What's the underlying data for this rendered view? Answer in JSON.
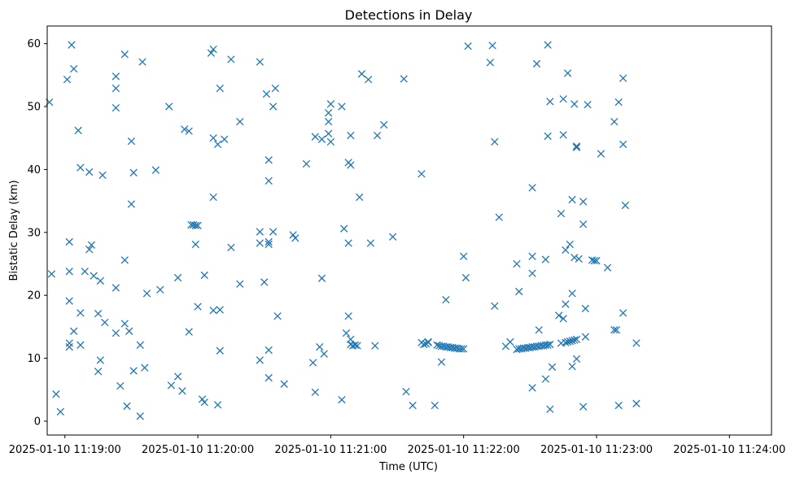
{
  "chart_data": {
    "type": "scatter",
    "title": "Detections in Delay",
    "xlabel": "Time (UTC)",
    "ylabel": "Bistatic Delay (km)",
    "x_axis": "datetime",
    "xlim": [
      "2025-01-10 11:18:52",
      "2025-01-10 11:24:19"
    ],
    "ylim": [
      -2.2,
      62.8
    ],
    "xticks": [
      "2025-01-10 11:19:00",
      "2025-01-10 11:20:00",
      "2025-01-10 11:21:00",
      "2025-01-10 11:22:00",
      "2025-01-10 11:23:00",
      "2025-01-10 11:24:00"
    ],
    "yticks": [
      0,
      10,
      20,
      30,
      40,
      50,
      60
    ],
    "marker": "x",
    "color": "#1f77b4",
    "grid": false,
    "legend": "none",
    "series": [
      {
        "points": [
          [
            "2025-01-10 11:18:53",
            50.7
          ],
          [
            "2025-01-10 11:18:54",
            23.4
          ],
          [
            "2025-01-10 11:18:56",
            4.3
          ],
          [
            "2025-01-10 11:18:58",
            1.5
          ],
          [
            "2025-01-10 11:19:01",
            54.3
          ],
          [
            "2025-01-10 11:19:02",
            28.5
          ],
          [
            "2025-01-10 11:19:02",
            11.8
          ],
          [
            "2025-01-10 11:19:02",
            12.4
          ],
          [
            "2025-01-10 11:19:02",
            19.1
          ],
          [
            "2025-01-10 11:19:02",
            23.8
          ],
          [
            "2025-01-10 11:19:03",
            59.8
          ],
          [
            "2025-01-10 11:19:04",
            14.3
          ],
          [
            "2025-01-10 11:19:04",
            56.0
          ],
          [
            "2025-01-10 11:19:06",
            46.2
          ],
          [
            "2025-01-10 11:19:07",
            17.2
          ],
          [
            "2025-01-10 11:19:07",
            12.1
          ],
          [
            "2025-01-10 11:19:07",
            40.3
          ],
          [
            "2025-01-10 11:19:09",
            23.8
          ],
          [
            "2025-01-10 11:19:11",
            27.3
          ],
          [
            "2025-01-10 11:19:11",
            39.6
          ],
          [
            "2025-01-10 11:19:12",
            28.0
          ],
          [
            "2025-01-10 11:19:13",
            23.1
          ],
          [
            "2025-01-10 11:19:15",
            17.1
          ],
          [
            "2025-01-10 11:19:15",
            7.9
          ],
          [
            "2025-01-10 11:19:16",
            9.7
          ],
          [
            "2025-01-10 11:19:16",
            22.3
          ],
          [
            "2025-01-10 11:19:17",
            39.1
          ],
          [
            "2025-01-10 11:19:18",
            15.7
          ],
          [
            "2025-01-10 11:19:23",
            54.8
          ],
          [
            "2025-01-10 11:19:23",
            52.9
          ],
          [
            "2025-01-10 11:19:23",
            49.8
          ],
          [
            "2025-01-10 11:19:23",
            21.2
          ],
          [
            "2025-01-10 11:19:23",
            14.0
          ],
          [
            "2025-01-10 11:19:25",
            5.6
          ],
          [
            "2025-01-10 11:19:27",
            58.3
          ],
          [
            "2025-01-10 11:19:27",
            25.6
          ],
          [
            "2025-01-10 11:19:27",
            15.5
          ],
          [
            "2025-01-10 11:19:28",
            2.4
          ],
          [
            "2025-01-10 11:19:29",
            14.3
          ],
          [
            "2025-01-10 11:19:30",
            44.5
          ],
          [
            "2025-01-10 11:19:30",
            34.5
          ],
          [
            "2025-01-10 11:19:31",
            39.5
          ],
          [
            "2025-01-10 11:19:31",
            8.0
          ],
          [
            "2025-01-10 11:19:34",
            12.1
          ],
          [
            "2025-01-10 11:19:34",
            0.8
          ],
          [
            "2025-01-10 11:19:35",
            57.1
          ],
          [
            "2025-01-10 11:19:36",
            8.5
          ],
          [
            "2025-01-10 11:19:37",
            20.3
          ],
          [
            "2025-01-10 11:19:41",
            39.9
          ],
          [
            "2025-01-10 11:19:43",
            20.9
          ],
          [
            "2025-01-10 11:19:47",
            50.0
          ],
          [
            "2025-01-10 11:19:48",
            5.7
          ],
          [
            "2025-01-10 11:19:51",
            7.1
          ],
          [
            "2025-01-10 11:19:51",
            22.8
          ],
          [
            "2025-01-10 11:19:53",
            4.8
          ],
          [
            "2025-01-10 11:19:54",
            46.4
          ],
          [
            "2025-01-10 11:19:56",
            46.1
          ],
          [
            "2025-01-10 11:19:56",
            14.2
          ],
          [
            "2025-01-10 11:19:57",
            31.2
          ],
          [
            "2025-01-10 11:19:58",
            31.2
          ],
          [
            "2025-01-10 11:19:59",
            31.1
          ],
          [
            "2025-01-10 11:20:00",
            31.1
          ],
          [
            "2025-01-10 11:19:59",
            28.1
          ],
          [
            "2025-01-10 11:20:00",
            18.2
          ],
          [
            "2025-01-10 11:20:02",
            3.5
          ],
          [
            "2025-01-10 11:20:03",
            23.2
          ],
          [
            "2025-01-10 11:20:03",
            3.0
          ],
          [
            "2025-01-10 11:20:06",
            58.5
          ],
          [
            "2025-01-10 11:20:07",
            59.1
          ],
          [
            "2025-01-10 11:20:07",
            45.0
          ],
          [
            "2025-01-10 11:20:07",
            35.6
          ],
          [
            "2025-01-10 11:20:07",
            17.6
          ],
          [
            "2025-01-10 11:20:09",
            44.0
          ],
          [
            "2025-01-10 11:20:09",
            2.6
          ],
          [
            "2025-01-10 11:20:10",
            52.9
          ],
          [
            "2025-01-10 11:20:10",
            17.7
          ],
          [
            "2025-01-10 11:20:10",
            11.2
          ],
          [
            "2025-01-10 11:20:12",
            44.8
          ],
          [
            "2025-01-10 11:20:15",
            57.5
          ],
          [
            "2025-01-10 11:20:15",
            27.6
          ],
          [
            "2025-01-10 11:20:19",
            47.6
          ],
          [
            "2025-01-10 11:20:19",
            21.8
          ],
          [
            "2025-01-10 11:20:28",
            57.1
          ],
          [
            "2025-01-10 11:20:28",
            30.1
          ],
          [
            "2025-01-10 11:20:28",
            28.3
          ],
          [
            "2025-01-10 11:20:28",
            9.7
          ],
          [
            "2025-01-10 11:20:30",
            22.1
          ],
          [
            "2025-01-10 11:20:31",
            52.0
          ],
          [
            "2025-01-10 11:20:32",
            38.2
          ],
          [
            "2025-01-10 11:20:32",
            28.5
          ],
          [
            "2025-01-10 11:20:32",
            28.1
          ],
          [
            "2025-01-10 11:20:32",
            41.5
          ],
          [
            "2025-01-10 11:20:32",
            11.3
          ],
          [
            "2025-01-10 11:20:32",
            6.9
          ],
          [
            "2025-01-10 11:20:34",
            30.1
          ],
          [
            "2025-01-10 11:20:34",
            50.0
          ],
          [
            "2025-01-10 11:20:35",
            52.9
          ],
          [
            "2025-01-10 11:20:36",
            16.7
          ],
          [
            "2025-01-10 11:20:39",
            5.9
          ],
          [
            "2025-01-10 11:20:43",
            29.6
          ],
          [
            "2025-01-10 11:20:44",
            29.1
          ],
          [
            "2025-01-10 11:20:49",
            40.9
          ],
          [
            "2025-01-10 11:20:52",
            9.3
          ],
          [
            "2025-01-10 11:20:53",
            45.2
          ],
          [
            "2025-01-10 11:20:53",
            4.6
          ],
          [
            "2025-01-10 11:20:55",
            11.8
          ],
          [
            "2025-01-10 11:20:56",
            44.8
          ],
          [
            "2025-01-10 11:20:56",
            22.7
          ],
          [
            "2025-01-10 11:20:57",
            10.7
          ],
          [
            "2025-01-10 11:20:59",
            49.0
          ],
          [
            "2025-01-10 11:20:59",
            47.6
          ],
          [
            "2025-01-10 11:20:59",
            45.7
          ],
          [
            "2025-01-10 11:21:00",
            44.4
          ],
          [
            "2025-01-10 11:21:00",
            50.4
          ],
          [
            "2025-01-10 11:21:05",
            50.0
          ],
          [
            "2025-01-10 11:21:05",
            3.4
          ],
          [
            "2025-01-10 11:21:06",
            30.6
          ],
          [
            "2025-01-10 11:21:07",
            14.0
          ],
          [
            "2025-01-10 11:21:08",
            41.1
          ],
          [
            "2025-01-10 11:21:08",
            28.3
          ],
          [
            "2025-01-10 11:21:08",
            16.7
          ],
          [
            "2025-01-10 11:21:09",
            45.4
          ],
          [
            "2025-01-10 11:21:09",
            40.7
          ],
          [
            "2025-01-10 11:21:09",
            13.0
          ],
          [
            "2025-01-10 11:21:09",
            12.2
          ],
          [
            "2025-01-10 11:21:10",
            12.0
          ],
          [
            "2025-01-10 11:21:11",
            12.1
          ],
          [
            "2025-01-10 11:21:12",
            12.0
          ],
          [
            "2025-01-10 11:21:13",
            35.6
          ],
          [
            "2025-01-10 11:21:14",
            55.2
          ],
          [
            "2025-01-10 11:21:17",
            54.3
          ],
          [
            "2025-01-10 11:21:18",
            28.3
          ],
          [
            "2025-01-10 11:21:20",
            12.0
          ],
          [
            "2025-01-10 11:21:21",
            45.4
          ],
          [
            "2025-01-10 11:21:24",
            47.1
          ],
          [
            "2025-01-10 11:21:28",
            29.3
          ],
          [
            "2025-01-10 11:21:33",
            54.4
          ],
          [
            "2025-01-10 11:21:34",
            4.7
          ],
          [
            "2025-01-10 11:21:37",
            2.5
          ],
          [
            "2025-01-10 11:21:41",
            39.3
          ],
          [
            "2025-01-10 11:21:41",
            12.5
          ],
          [
            "2025-01-10 11:21:42",
            12.2
          ],
          [
            "2025-01-10 11:21:43",
            12.3
          ],
          [
            "2025-01-10 11:21:44",
            12.5
          ],
          [
            "2025-01-10 11:21:44",
            12.6
          ],
          [
            "2025-01-10 11:21:47",
            2.5
          ],
          [
            "2025-01-10 11:21:48",
            12.1
          ],
          [
            "2025-01-10 11:21:49",
            12.0
          ],
          [
            "2025-01-10 11:21:50",
            11.9
          ],
          [
            "2025-01-10 11:21:51",
            11.9
          ],
          [
            "2025-01-10 11:21:52",
            11.8
          ],
          [
            "2025-01-10 11:21:53",
            11.8
          ],
          [
            "2025-01-10 11:21:54",
            11.7
          ],
          [
            "2025-01-10 11:21:55",
            11.7
          ],
          [
            "2025-01-10 11:21:56",
            11.6
          ],
          [
            "2025-01-10 11:21:57",
            11.6
          ],
          [
            "2025-01-10 11:21:58",
            11.5
          ],
          [
            "2025-01-10 11:21:59",
            11.5
          ],
          [
            "2025-01-10 11:22:00",
            11.5
          ],
          [
            "2025-01-10 11:21:50",
            9.4
          ],
          [
            "2025-01-10 11:21:52",
            19.3
          ],
          [
            "2025-01-10 11:22:00",
            26.2
          ],
          [
            "2025-01-10 11:22:01",
            22.8
          ],
          [
            "2025-01-10 11:22:02",
            59.6
          ],
          [
            "2025-01-10 11:22:12",
            57.0
          ],
          [
            "2025-01-10 11:22:13",
            59.7
          ],
          [
            "2025-01-10 11:22:14",
            44.4
          ],
          [
            "2025-01-10 11:22:14",
            18.3
          ],
          [
            "2025-01-10 11:22:16",
            32.4
          ],
          [
            "2025-01-10 11:22:19",
            11.9
          ],
          [
            "2025-01-10 11:22:21",
            12.6
          ],
          [
            "2025-01-10 11:22:24",
            25.0
          ],
          [
            "2025-01-10 11:22:25",
            20.6
          ],
          [
            "2025-01-10 11:22:24",
            11.4
          ],
          [
            "2025-01-10 11:22:25",
            11.5
          ],
          [
            "2025-01-10 11:22:26",
            11.5
          ],
          [
            "2025-01-10 11:22:27",
            11.6
          ],
          [
            "2025-01-10 11:22:28",
            11.6
          ],
          [
            "2025-01-10 11:22:29",
            11.7
          ],
          [
            "2025-01-10 11:22:30",
            11.7
          ],
          [
            "2025-01-10 11:22:31",
            11.8
          ],
          [
            "2025-01-10 11:22:32",
            11.8
          ],
          [
            "2025-01-10 11:22:33",
            11.9
          ],
          [
            "2025-01-10 11:22:34",
            11.9
          ],
          [
            "2025-01-10 11:22:35",
            12.0
          ],
          [
            "2025-01-10 11:22:36",
            12.0
          ],
          [
            "2025-01-10 11:22:37",
            12.1
          ],
          [
            "2025-01-10 11:22:38",
            12.1
          ],
          [
            "2025-01-10 11:22:39",
            12.2
          ],
          [
            "2025-01-10 11:22:31",
            5.3
          ],
          [
            "2025-01-10 11:22:31",
            23.5
          ],
          [
            "2025-01-10 11:22:31",
            26.2
          ],
          [
            "2025-01-10 11:22:31",
            37.1
          ],
          [
            "2025-01-10 11:22:33",
            56.8
          ],
          [
            "2025-01-10 11:22:34",
            14.5
          ],
          [
            "2025-01-10 11:22:37",
            6.7
          ],
          [
            "2025-01-10 11:22:37",
            25.7
          ],
          [
            "2025-01-10 11:22:38",
            59.8
          ],
          [
            "2025-01-10 11:22:38",
            45.3
          ],
          [
            "2025-01-10 11:22:39",
            50.8
          ],
          [
            "2025-01-10 11:22:39",
            1.9
          ],
          [
            "2025-01-10 11:22:40",
            8.6
          ],
          [
            "2025-01-10 11:22:43",
            16.8
          ],
          [
            "2025-01-10 11:22:44",
            33.0
          ],
          [
            "2025-01-10 11:22:44",
            12.4
          ],
          [
            "2025-01-10 11:22:45",
            51.2
          ],
          [
            "2025-01-10 11:22:45",
            45.5
          ],
          [
            "2025-01-10 11:22:45",
            16.3
          ],
          [
            "2025-01-10 11:22:46",
            27.2
          ],
          [
            "2025-01-10 11:22:46",
            18.6
          ],
          [
            "2025-01-10 11:22:46",
            12.5
          ],
          [
            "2025-01-10 11:22:47",
            12.6
          ],
          [
            "2025-01-10 11:22:48",
            12.7
          ],
          [
            "2025-01-10 11:22:49",
            12.8
          ],
          [
            "2025-01-10 11:22:50",
            12.9
          ],
          [
            "2025-01-10 11:22:51",
            13.0
          ],
          [
            "2025-01-10 11:22:47",
            55.3
          ],
          [
            "2025-01-10 11:22:48",
            28.1
          ],
          [
            "2025-01-10 11:22:49",
            35.2
          ],
          [
            "2025-01-10 11:22:49",
            20.3
          ],
          [
            "2025-01-10 11:22:49",
            8.7
          ],
          [
            "2025-01-10 11:22:50",
            26.0
          ],
          [
            "2025-01-10 11:22:50",
            50.4
          ],
          [
            "2025-01-10 11:22:51",
            43.7
          ],
          [
            "2025-01-10 11:22:51",
            43.5
          ],
          [
            "2025-01-10 11:22:51",
            9.9
          ],
          [
            "2025-01-10 11:22:52",
            25.8
          ],
          [
            "2025-01-10 11:22:54",
            34.9
          ],
          [
            "2025-01-10 11:22:54",
            31.3
          ],
          [
            "2025-01-10 11:22:54",
            2.3
          ],
          [
            "2025-01-10 11:22:55",
            13.4
          ],
          [
            "2025-01-10 11:22:55",
            17.9
          ],
          [
            "2025-01-10 11:22:56",
            50.3
          ],
          [
            "2025-01-10 11:22:58",
            25.6
          ],
          [
            "2025-01-10 11:22:59",
            25.5
          ],
          [
            "2025-01-10 11:23:00",
            25.5
          ],
          [
            "2025-01-10 11:23:02",
            42.5
          ],
          [
            "2025-01-10 11:23:05",
            24.4
          ],
          [
            "2025-01-10 11:23:08",
            47.6
          ],
          [
            "2025-01-10 11:23:08",
            14.5
          ],
          [
            "2025-01-10 11:23:09",
            14.5
          ],
          [
            "2025-01-10 11:23:10",
            50.7
          ],
          [
            "2025-01-10 11:23:10",
            2.5
          ],
          [
            "2025-01-10 11:23:12",
            54.5
          ],
          [
            "2025-01-10 11:23:12",
            44.0
          ],
          [
            "2025-01-10 11:23:12",
            17.2
          ],
          [
            "2025-01-10 11:23:13",
            34.3
          ],
          [
            "2025-01-10 11:23:18",
            12.4
          ],
          [
            "2025-01-10 11:23:18",
            2.8
          ]
        ]
      }
    ]
  }
}
